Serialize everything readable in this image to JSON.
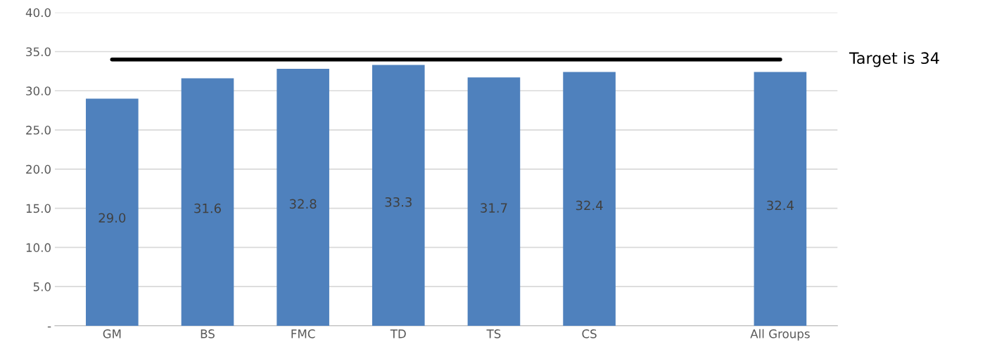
{
  "chart_data": {
    "type": "bar",
    "categories": [
      "GM",
      "BS",
      "FMC",
      "TD",
      "TS",
      "CS",
      null,
      "All Groups"
    ],
    "values": [
      29.0,
      31.6,
      32.8,
      33.3,
      31.7,
      32.4,
      null,
      32.4
    ],
    "value_labels": [
      "29.0",
      "31.6",
      "32.8",
      "33.3",
      "31.7",
      "32.4",
      null,
      "32.4"
    ],
    "color": "#4f81bd",
    "ylim": [
      0,
      40
    ],
    "yticks": [
      {
        "value": 0,
        "label": "-"
      },
      {
        "value": 5,
        "label": "5.0"
      },
      {
        "value": 10,
        "label": "10.0"
      },
      {
        "value": 15,
        "label": "15.0"
      },
      {
        "value": 20,
        "label": "20.0"
      },
      {
        "value": 25,
        "label": "25.0"
      },
      {
        "value": 30,
        "label": "30.0"
      },
      {
        "value": 35,
        "label": "35.0"
      },
      {
        "value": 40,
        "label": "40.0"
      }
    ],
    "ref_lines": [
      {
        "axis": "y",
        "value": 34,
        "label": "Target is 34",
        "color": "#000000",
        "line_style": "solid"
      }
    ],
    "grid": "y",
    "legend": false
  }
}
